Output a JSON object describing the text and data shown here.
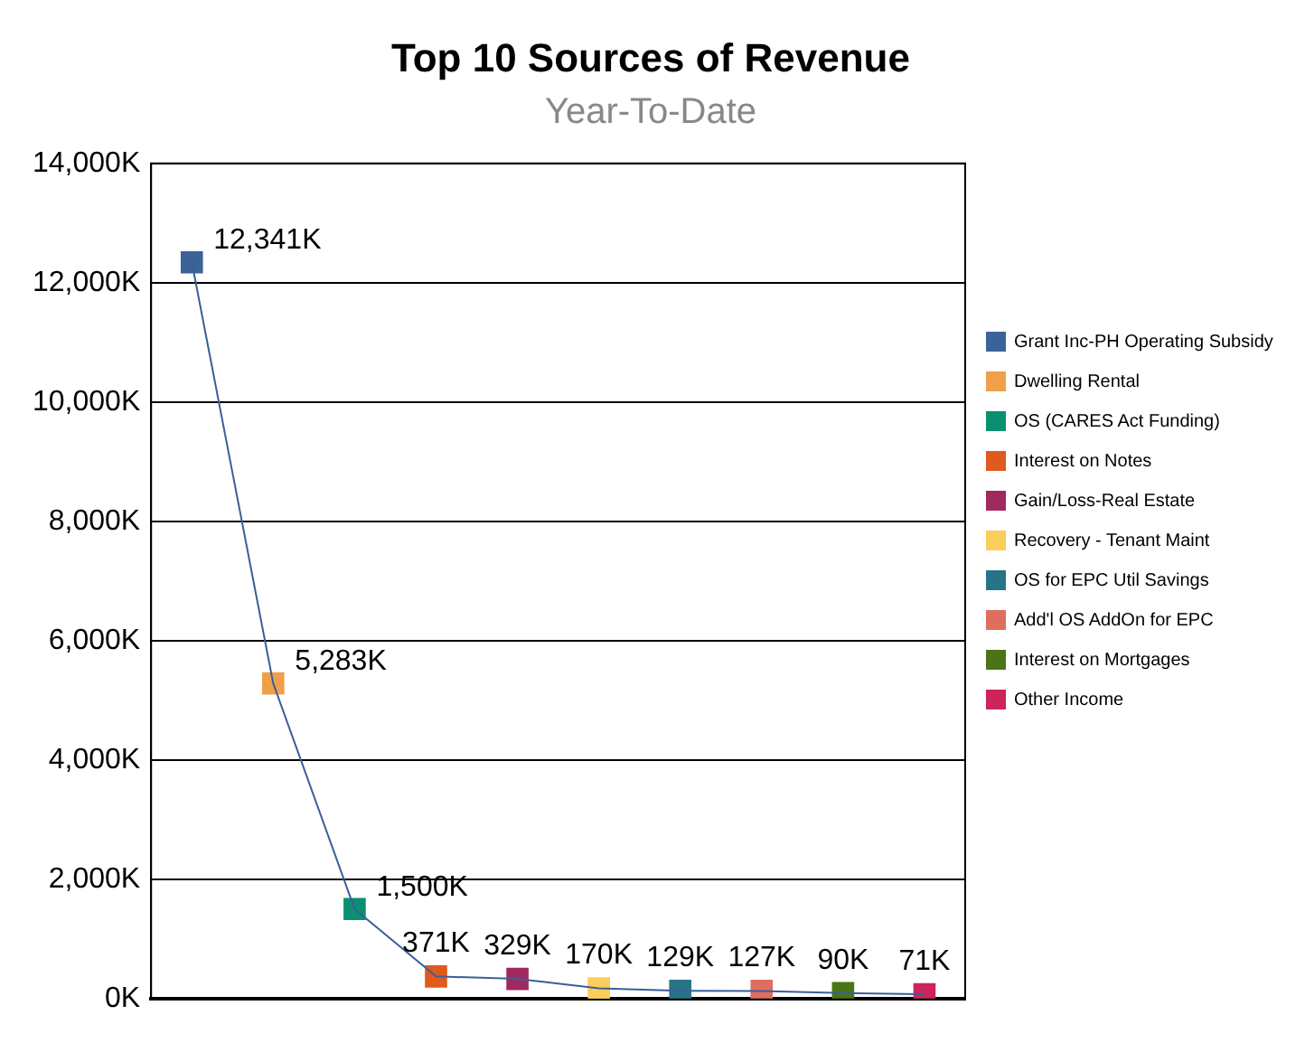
{
  "chart_data": {
    "type": "line",
    "title": "Top 10 Sources of Revenue",
    "subtitle": "Year-To-Date",
    "categories": [
      null,
      null,
      null,
      null,
      null,
      null,
      null,
      null,
      null,
      null
    ],
    "series": [
      {
        "color": "#3a5f9a",
        "marker": "none",
        "values": [
          12341,
          5283,
          1500,
          371,
          329,
          170,
          129,
          127,
          90,
          71
        ]
      },
      {
        "name": "Grant Inc-PH Operating Subsidy",
        "color": "#3b6397",
        "values": [
          12341,
          null,
          null,
          null,
          null,
          null,
          null,
          null,
          null,
          null
        ],
        "value_labels": [
          "12,341K",
          null,
          null,
          null,
          null,
          null,
          null,
          null,
          null,
          null
        ]
      },
      {
        "name": "Dwelling Rental",
        "color": "#f0a04b",
        "values": [
          null,
          5283,
          null,
          null,
          null,
          null,
          null,
          null,
          null,
          null
        ],
        "value_labels": [
          null,
          "5,283K",
          null,
          null,
          null,
          null,
          null,
          null,
          null,
          null
        ]
      },
      {
        "name": "OS (CARES Act Funding)",
        "color": "#0a9070",
        "values": [
          null,
          null,
          1500,
          null,
          null,
          null,
          null,
          null,
          null,
          null
        ],
        "value_labels": [
          null,
          null,
          "1,500K",
          null,
          null,
          null,
          null,
          null,
          null,
          null
        ]
      },
      {
        "name": "Interest on Notes",
        "color": "#e05a1e",
        "values": [
          null,
          null,
          null,
          371,
          null,
          null,
          null,
          null,
          null,
          null
        ],
        "value_labels": [
          null,
          null,
          null,
          "371K",
          null,
          null,
          null,
          null,
          null,
          null
        ]
      },
      {
        "name": "Gain/Loss-Real Estate",
        "color": "#9e2a5e",
        "values": [
          null,
          null,
          null,
          null,
          329,
          null,
          null,
          null,
          null,
          null
        ],
        "value_labels": [
          null,
          null,
          null,
          null,
          "329K",
          null,
          null,
          null,
          null,
          null
        ]
      },
      {
        "name": "Recovery - Tenant Maint",
        "color": "#fbcd5a",
        "values": [
          null,
          null,
          null,
          null,
          null,
          170,
          null,
          null,
          null,
          null
        ],
        "value_labels": [
          null,
          null,
          null,
          null,
          null,
          "170K",
          null,
          null,
          null,
          null
        ]
      },
      {
        "name": "OS for EPC Util Savings",
        "color": "#277488",
        "values": [
          null,
          null,
          null,
          null,
          null,
          null,
          129,
          null,
          null,
          null
        ],
        "value_labels": [
          null,
          null,
          null,
          null,
          null,
          null,
          "129K",
          null,
          null,
          null
        ]
      },
      {
        "name": "Add'l OS AddOn for EPC",
        "color": "#de6f5e",
        "values": [
          null,
          null,
          null,
          null,
          null,
          null,
          null,
          127,
          null,
          null
        ],
        "value_labels": [
          null,
          null,
          null,
          null,
          null,
          null,
          null,
          "127K",
          null,
          null
        ]
      },
      {
        "name": "Interest on Mortgages",
        "color": "#4a7417",
        "values": [
          null,
          null,
          null,
          null,
          null,
          null,
          null,
          null,
          90,
          null
        ],
        "value_labels": [
          null,
          null,
          null,
          null,
          null,
          null,
          null,
          null,
          "90K",
          null
        ]
      },
      {
        "name": "Other Income",
        "color": "#cd2459",
        "values": [
          null,
          null,
          null,
          null,
          null,
          null,
          null,
          null,
          null,
          71
        ],
        "value_labels": [
          null,
          null,
          null,
          null,
          null,
          null,
          null,
          null,
          null,
          "71K"
        ]
      }
    ],
    "ylim": [
      0,
      14000
    ],
    "yticks": [
      {
        "value": 0,
        "label": "0K"
      },
      {
        "value": 2000,
        "label": "2,000K"
      },
      {
        "value": 4000,
        "label": "4,000K"
      },
      {
        "value": 6000,
        "label": "6,000K"
      },
      {
        "value": 8000,
        "label": "8,000K"
      },
      {
        "value": 10000,
        "label": "10,000K"
      },
      {
        "value": 12000,
        "label": "12,000K"
      },
      {
        "value": 14000,
        "label": "14,000K"
      }
    ],
    "grid": "y",
    "legend": "right",
    "marker": "square",
    "line_style": "solid",
    "tick_labels": "y"
  }
}
